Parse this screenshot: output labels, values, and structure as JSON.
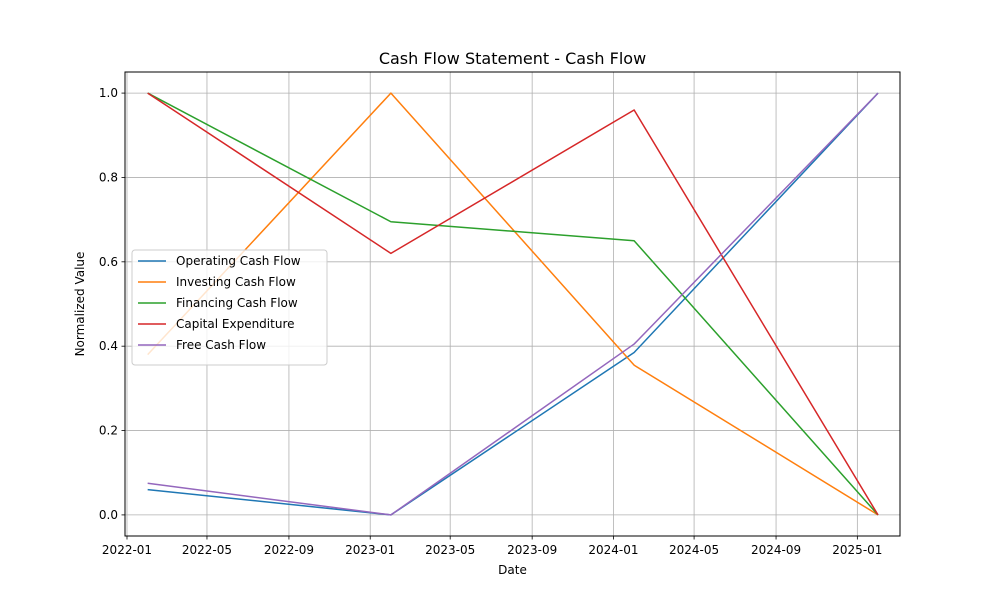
{
  "chart_data": {
    "type": "line",
    "title": "Cash Flow Statement - Cash Flow",
    "xlabel": "Date",
    "ylabel": "Normalized Value",
    "x": [
      "2022-02-01",
      "2023-02-01",
      "2024-02-01",
      "2025-02-01"
    ],
    "xlim": [
      "2021-12-29",
      "2025-03-06"
    ],
    "ylim": [
      -0.05,
      1.05
    ],
    "grid": true,
    "legend_position": "center-left",
    "x_ticks": [
      "2022-01",
      "2022-05",
      "2022-09",
      "2023-01",
      "2023-05",
      "2023-09",
      "2024-01",
      "2024-05",
      "2024-09",
      "2025-01"
    ],
    "y_ticks": [
      "0.0",
      "0.2",
      "0.4",
      "0.6",
      "0.8",
      "1.0"
    ],
    "series": [
      {
        "name": "Operating Cash Flow",
        "color": "#1f77b4",
        "values": [
          0.06,
          0.0,
          0.385,
          1.0
        ]
      },
      {
        "name": "Investing Cash Flow",
        "color": "#ff7f0e",
        "values": [
          0.38,
          1.0,
          0.355,
          0.0
        ]
      },
      {
        "name": "Financing Cash Flow",
        "color": "#2ca02c",
        "values": [
          1.0,
          0.695,
          0.65,
          0.0
        ]
      },
      {
        "name": "Capital Expenditure",
        "color": "#d62728",
        "values": [
          1.0,
          0.62,
          0.96,
          0.0
        ]
      },
      {
        "name": "Free Cash Flow",
        "color": "#9467bd",
        "values": [
          0.075,
          0.0,
          0.405,
          1.0
        ]
      }
    ]
  }
}
